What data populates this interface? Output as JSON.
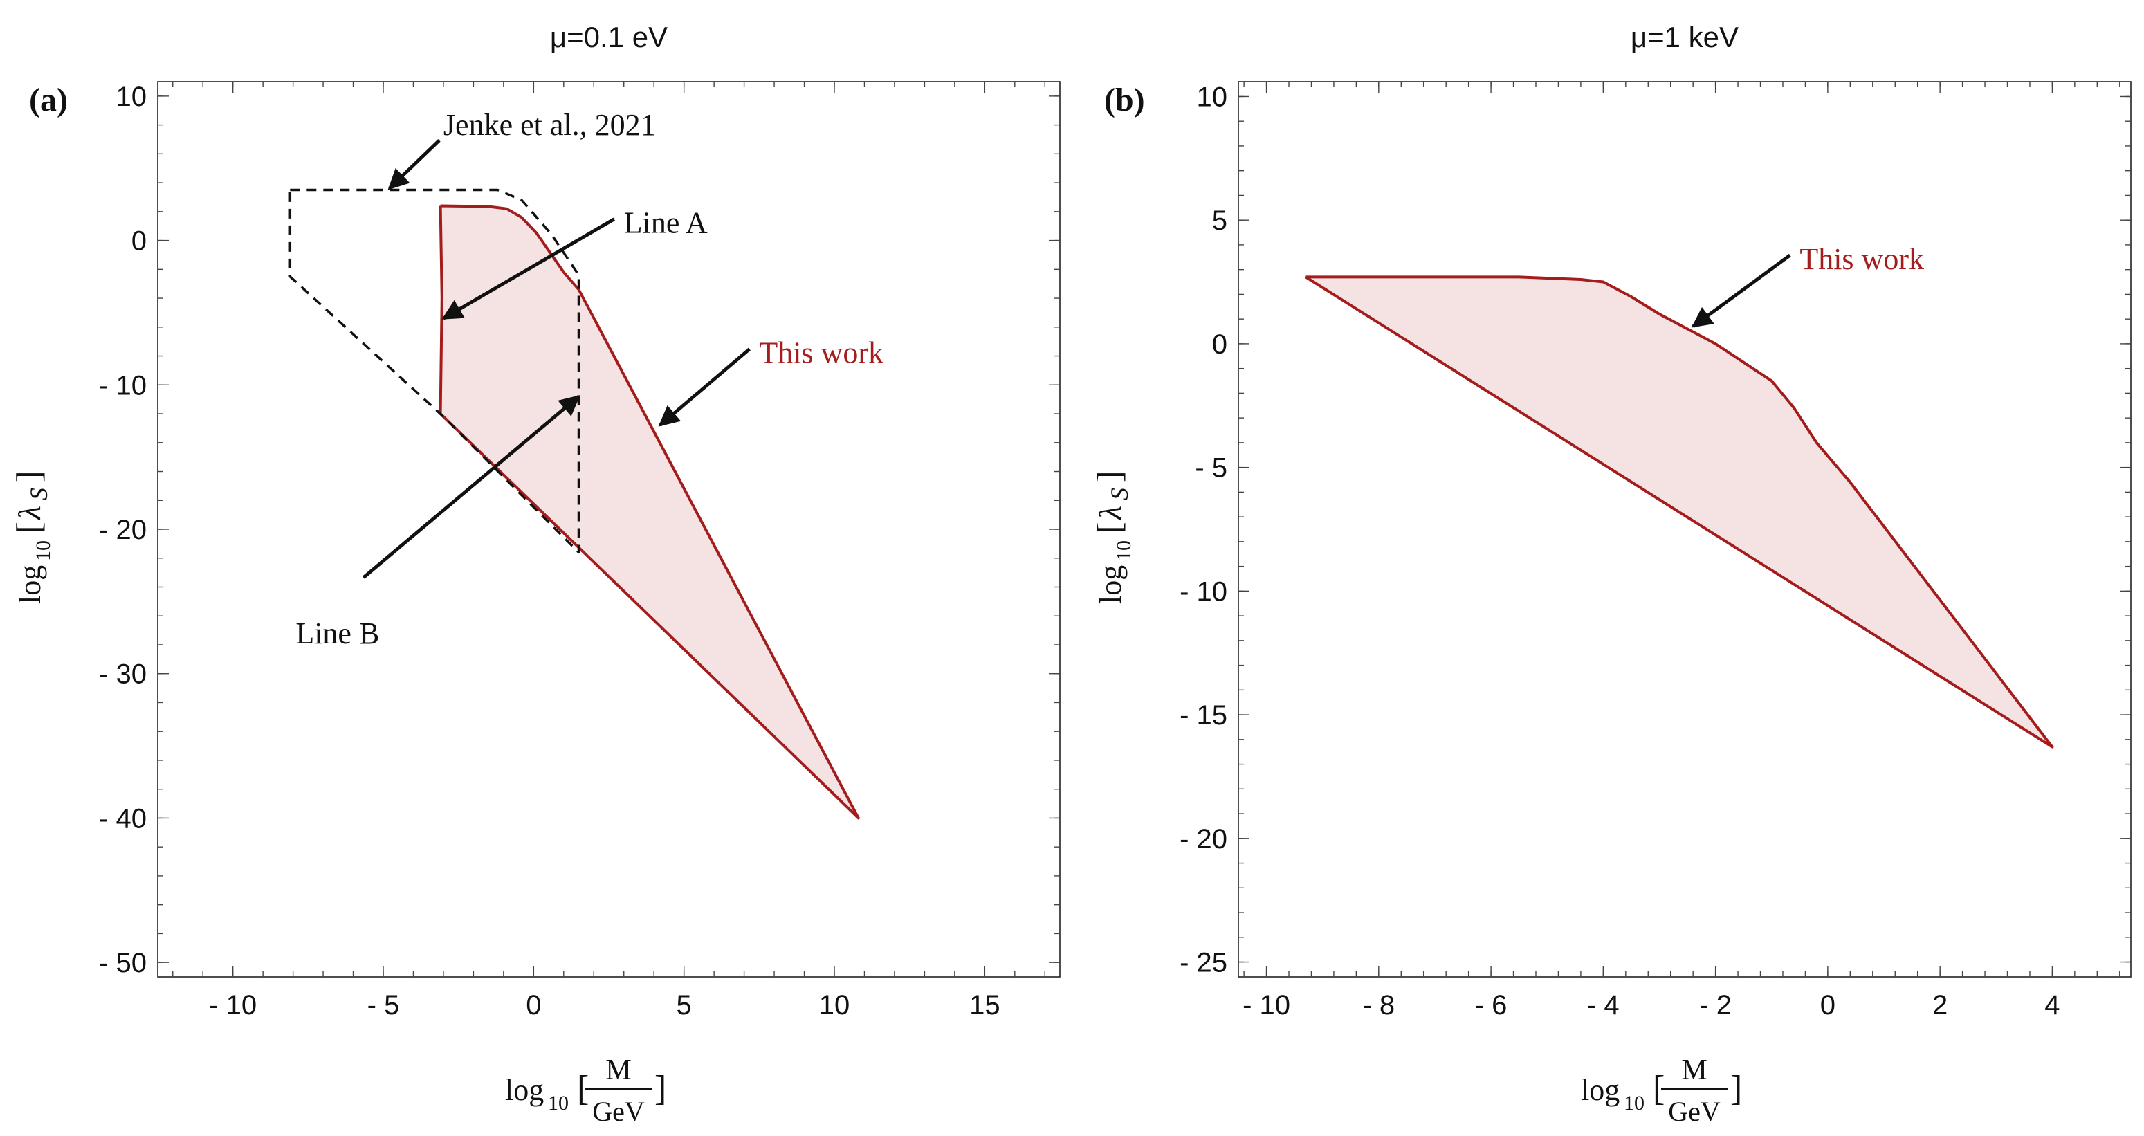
{
  "chart_data": [
    {
      "type": "area",
      "panel_label": "(a)",
      "title": "μ=0.1 eV",
      "xlabel": {
        "prefix": "log",
        "sub": "10",
        "num": "M",
        "den": "GeV"
      },
      "ylabel": {
        "prefix": "log",
        "sub": "10",
        "symbol": "λ",
        "symbol_sub": "S"
      },
      "xlim": [
        -12.5,
        17.5
      ],
      "ylim": [
        -51,
        11
      ],
      "xticks": [
        -10,
        -5,
        0,
        5,
        10,
        15
      ],
      "yticks": [
        10,
        0,
        -10,
        -20,
        -30,
        -40,
        -50
      ],
      "xtick_labels": [
        "- 10",
        "- 5",
        "0",
        "5",
        "10",
        "15"
      ],
      "ytick_labels": [
        "10",
        "0",
        "- 10",
        "- 20",
        "- 30",
        "- 40",
        "- 50"
      ],
      "series": [
        {
          "name": "This work",
          "style": "filled-solid",
          "color": "#a51c1c",
          "fill": "#f5e3e4",
          "points": [
            [
              -3.1,
              2.4
            ],
            [
              -1.5,
              2.35
            ],
            [
              -0.9,
              2.2
            ],
            [
              -0.4,
              1.6
            ],
            [
              0.1,
              0.5
            ],
            [
              0.5,
              -0.7
            ],
            [
              1.0,
              -2.2
            ],
            [
              1.5,
              -3.4
            ],
            [
              10.8,
              -40.0
            ],
            [
              -3.0,
              -12.2
            ],
            [
              -3.1,
              -12.0
            ],
            [
              -3.05,
              -4.0
            ],
            [
              -3.1,
              2.4
            ]
          ]
        },
        {
          "name": "Jenke et al., 2021",
          "style": "dashed",
          "color": "#111111",
          "points": [
            [
              -8.1,
              3.5
            ],
            [
              -1.2,
              3.5
            ],
            [
              -0.4,
              2.8
            ],
            [
              0.6,
              0.4
            ],
            [
              1.5,
              -2.4
            ],
            [
              1.5,
              -21.6
            ],
            [
              -3.0,
              -12.2
            ],
            [
              -8.1,
              -2.5
            ],
            [
              -8.1,
              3.5
            ]
          ]
        }
      ],
      "annotations": [
        {
          "text": "Jenke et al., 2021",
          "color": "#111111",
          "xy": [
            -4.8,
            3.6
          ],
          "xytext": [
            -3.0,
            7.8
          ]
        },
        {
          "text": "Line A",
          "color": "#111111",
          "xy": [
            -3.0,
            -5.4
          ],
          "xytext": [
            3.0,
            1.0
          ]
        },
        {
          "text": "This work",
          "color": "#a51c1c",
          "xy": [
            4.2,
            -12.8
          ],
          "xytext": [
            7.5,
            -8.0
          ]
        },
        {
          "text": "Line B",
          "color": "#111111",
          "xy": [
            1.5,
            -10.8
          ],
          "xytext": [
            -7.5,
            -25.5
          ]
        }
      ]
    },
    {
      "type": "area",
      "panel_label": "(b)",
      "title": "μ=1 keV",
      "xlabel": {
        "prefix": "log",
        "sub": "10",
        "num": "M",
        "den": "GeV"
      },
      "ylabel": {
        "prefix": "log",
        "sub": "10",
        "symbol": "λ",
        "symbol_sub": "S"
      },
      "xlim": [
        -10.5,
        5.4
      ],
      "ylim": [
        -25.6,
        10.6
      ],
      "xticks": [
        -10,
        -8,
        -6,
        -4,
        -2,
        0,
        2,
        4
      ],
      "yticks": [
        10,
        5,
        0,
        -5,
        -10,
        -15,
        -20,
        -25
      ],
      "xtick_labels": [
        "- 10",
        "- 8",
        "- 6",
        "- 4",
        "- 2",
        "0",
        "2",
        "4"
      ],
      "ytick_labels": [
        "10",
        "5",
        "0",
        "- 5",
        "- 10",
        "- 15",
        "- 20",
        "- 25"
      ],
      "series": [
        {
          "name": "This work",
          "style": "filled-solid",
          "color": "#a51c1c",
          "fill": "#f5e3e4",
          "points": [
            [
              -9.3,
              2.7
            ],
            [
              -5.5,
              2.7
            ],
            [
              -4.4,
              2.6
            ],
            [
              -4.0,
              2.5
            ],
            [
              -3.5,
              1.9
            ],
            [
              -3.0,
              1.2
            ],
            [
              -2.0,
              0.0
            ],
            [
              -1.0,
              -1.5
            ],
            [
              -0.6,
              -2.6
            ],
            [
              -0.2,
              -4.0
            ],
            [
              0.4,
              -5.6
            ],
            [
              4.0,
              -16.3
            ],
            [
              -9.3,
              2.7
            ]
          ]
        }
      ],
      "annotations": [
        {
          "text": "This work",
          "color": "#a51c1c",
          "xy": [
            -2.4,
            0.7
          ],
          "xytext": [
            -0.5,
            3.3
          ]
        }
      ]
    }
  ]
}
